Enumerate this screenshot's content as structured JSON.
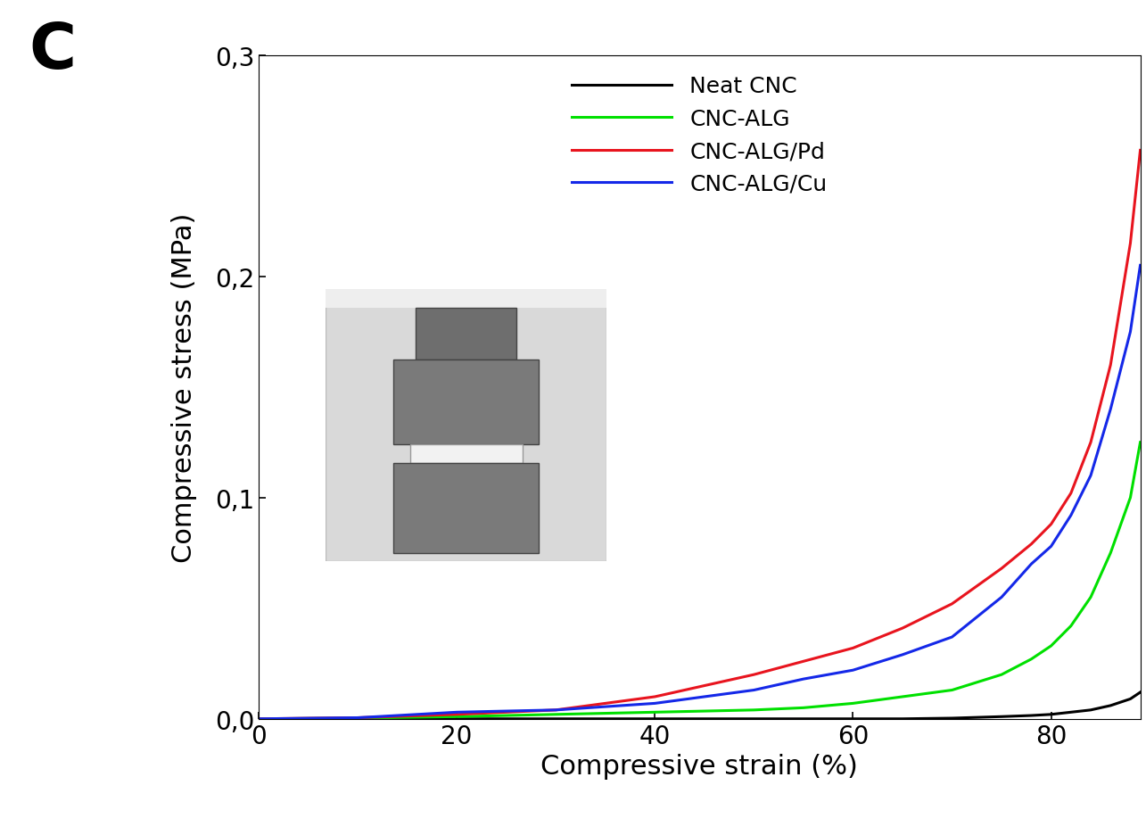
{
  "chart_data": {
    "type": "line",
    "panel_label": "C",
    "x_label": "Compressive strain (%)",
    "y_label": "Compressive stress (MPa)",
    "x": [
      0,
      10,
      20,
      30,
      40,
      50,
      55,
      60,
      65,
      70,
      75,
      78,
      80,
      82,
      84,
      86,
      88,
      89
    ],
    "series": [
      {
        "name": "Neat CNC",
        "color": "#000000",
        "values": [
          0,
          0,
          0,
          0,
          0,
          0,
          0,
          0,
          0,
          0.0003,
          0.001,
          0.0015,
          0.002,
          0.003,
          0.004,
          0.006,
          0.009,
          0.012
        ]
      },
      {
        "name": "CNC-ALG",
        "color": "#00e000",
        "values": [
          0,
          0.0003,
          0.001,
          0.002,
          0.003,
          0.004,
          0.005,
          0.007,
          0.01,
          0.013,
          0.02,
          0.027,
          0.033,
          0.042,
          0.055,
          0.075,
          0.1,
          0.125
        ]
      },
      {
        "name": "CNC-ALG/Pd",
        "color": "#e8141e",
        "values": [
          0,
          0.0005,
          0.002,
          0.004,
          0.01,
          0.02,
          0.026,
          0.032,
          0.041,
          0.052,
          0.068,
          0.079,
          0.088,
          0.102,
          0.125,
          0.16,
          0.215,
          0.257
        ]
      },
      {
        "name": "CNC-ALG/Cu",
        "color": "#1428e8",
        "values": [
          0,
          0.0005,
          0.003,
          0.004,
          0.007,
          0.013,
          0.018,
          0.022,
          0.029,
          0.037,
          0.055,
          0.07,
          0.078,
          0.092,
          0.11,
          0.14,
          0.175,
          0.205
        ]
      }
    ],
    "xlim": [
      0,
      89
    ],
    "xticks": [
      0,
      20,
      40,
      60,
      80
    ],
    "ylim": [
      0,
      0.3
    ],
    "yticks": [
      {
        "value": 0,
        "label": "0,0"
      },
      {
        "value": 0.1,
        "label": "0,1"
      },
      {
        "value": 0.2,
        "label": "0,2"
      },
      {
        "value": 0.3,
        "label": "0,3"
      }
    ],
    "grid": false,
    "legend": "upper center"
  }
}
